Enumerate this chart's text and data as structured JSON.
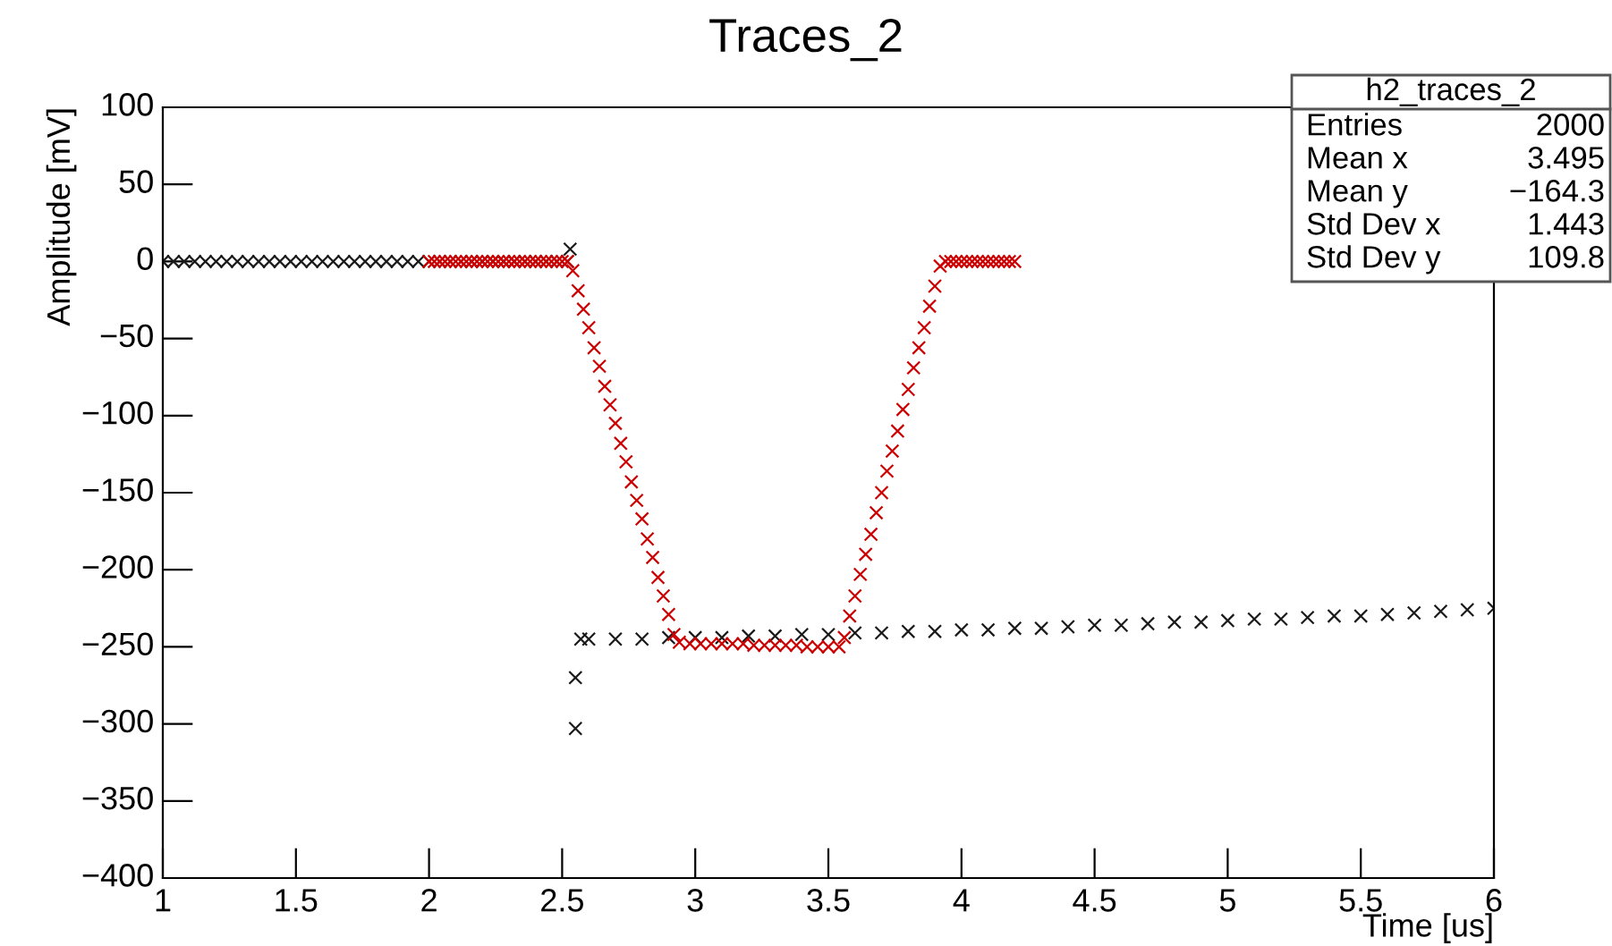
{
  "chart_data": {
    "type": "scatter",
    "title": "Traces_2",
    "xlabel": "Time [us]",
    "ylabel": "Amplitude [mV]",
    "xlim": [
      1,
      6
    ],
    "xticks": [
      1,
      1.5,
      2,
      2.5,
      3,
      3.5,
      4,
      4.5,
      5,
      5.5,
      6
    ],
    "ylim": [
      -400,
      100
    ],
    "yticks": [
      -400,
      -350,
      -300,
      -250,
      -200,
      -150,
      -100,
      -50,
      0,
      50,
      100
    ],
    "grid": false,
    "legend": false,
    "marker": "cross",
    "annotations": [
      "h2_traces_2",
      "Entries",
      "2000",
      "Mean x",
      "3.495",
      "Mean y",
      "−164.3",
      "Std Dev x",
      "1.443",
      "Std Dev y",
      "109.8"
    ],
    "series": [
      {
        "color": "#1a1a1a",
        "x": [
          1.0,
          1.04,
          1.08,
          1.12,
          1.16,
          1.2,
          1.24,
          1.28,
          1.32,
          1.36,
          1.4,
          1.44,
          1.48,
          1.52,
          1.56,
          1.6,
          1.64,
          1.68,
          1.72,
          1.76,
          1.8,
          1.84,
          1.88,
          1.92,
          1.96,
          2.0,
          2.04,
          2.08,
          2.12,
          2.16,
          2.2,
          2.24,
          2.28,
          2.32,
          2.36,
          2.4,
          2.44,
          2.48,
          2.52,
          2.53,
          2.55,
          2.55,
          2.57,
          2.6,
          2.7,
          2.8,
          2.9,
          3.0,
          3.1,
          3.2,
          3.3,
          3.4,
          3.5,
          3.6,
          3.7,
          3.8,
          3.9,
          4.0,
          4.1,
          4.2,
          4.3,
          4.4,
          4.5,
          4.6,
          4.7,
          4.8,
          4.9,
          5.0,
          5.1,
          5.2,
          5.3,
          5.4,
          5.5,
          5.6,
          5.7,
          5.8,
          5.9,
          6.0
        ],
        "values": [
          0,
          0,
          0,
          0,
          0,
          0,
          0,
          0,
          0,
          0,
          0,
          0,
          0,
          0,
          0,
          0,
          0,
          0,
          0,
          0,
          0,
          0,
          0,
          0,
          0,
          0,
          0,
          0,
          0,
          0,
          0,
          0,
          0,
          0,
          0,
          0,
          0,
          0,
          0,
          8,
          -270,
          -303,
          -245,
          -245,
          -245,
          -245,
          -244,
          -244,
          -244,
          -243,
          -243,
          -242,
          -242,
          -241,
          -241,
          -240,
          -240,
          -239,
          -239,
          -238,
          -238,
          -237,
          -236,
          -236,
          -235,
          -234,
          -234,
          -233,
          -232,
          -232,
          -231,
          -230,
          -230,
          -229,
          -228,
          -227,
          -226,
          -225
        ]
      },
      {
        "color": "#cc0000",
        "x": [
          2.0,
          2.02,
          2.04,
          2.06,
          2.08,
          2.1,
          2.12,
          2.14,
          2.16,
          2.18,
          2.2,
          2.22,
          2.24,
          2.26,
          2.28,
          2.3,
          2.32,
          2.34,
          2.36,
          2.38,
          2.4,
          2.42,
          2.44,
          2.46,
          2.48,
          2.5,
          2.52,
          2.54,
          2.56,
          2.58,
          2.6,
          2.62,
          2.64,
          2.66,
          2.68,
          2.7,
          2.72,
          2.74,
          2.76,
          2.78,
          2.8,
          2.82,
          2.84,
          2.86,
          2.88,
          2.9,
          2.92,
          2.94,
          2.98,
          3.02,
          3.06,
          3.1,
          3.14,
          3.18,
          3.22,
          3.26,
          3.3,
          3.34,
          3.38,
          3.42,
          3.46,
          3.5,
          3.54,
          3.56,
          3.58,
          3.6,
          3.62,
          3.64,
          3.66,
          3.68,
          3.7,
          3.72,
          3.74,
          3.76,
          3.78,
          3.8,
          3.82,
          3.84,
          3.86,
          3.88,
          3.9,
          3.92,
          3.94,
          3.96,
          3.98,
          4.0,
          4.02,
          4.04,
          4.06,
          4.08,
          4.1,
          4.12,
          4.14,
          4.16,
          4.18,
          4.2
        ],
        "values": [
          0,
          0,
          0,
          0,
          0,
          0,
          0,
          0,
          0,
          0,
          0,
          0,
          0,
          0,
          0,
          0,
          0,
          0,
          0,
          0,
          0,
          0,
          0,
          0,
          0,
          0,
          0,
          -6,
          -19,
          -31,
          -43,
          -56,
          -68,
          -81,
          -93,
          -105,
          -118,
          -130,
          -143,
          -155,
          -167,
          -180,
          -192,
          -205,
          -217,
          -229,
          -242,
          -247,
          -248,
          -248,
          -248,
          -248,
          -248,
          -248,
          -249,
          -249,
          -249,
          -249,
          -249,
          -250,
          -250,
          -250,
          -250,
          -244,
          -230,
          -217,
          -203,
          -190,
          -177,
          -163,
          -150,
          -136,
          -123,
          -110,
          -96,
          -83,
          -69,
          -56,
          -43,
          -29,
          -16,
          -3,
          0,
          0,
          0,
          0,
          0,
          0,
          0,
          0,
          0,
          0,
          0,
          0,
          0,
          0
        ]
      }
    ]
  }
}
